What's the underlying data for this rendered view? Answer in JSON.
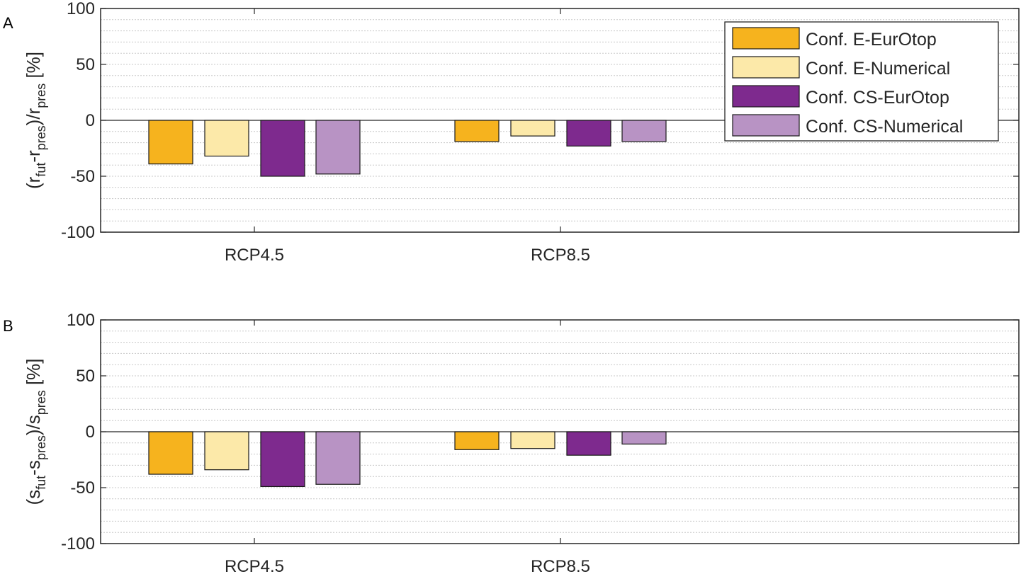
{
  "chart_data": [
    {
      "type": "bar",
      "panel_label": "A",
      "categories": [
        "RCP4.5",
        "RCP8.5"
      ],
      "ylim": [
        -100,
        100
      ],
      "yticks": [
        "100",
        "50",
        "0",
        "-50",
        "-100"
      ],
      "ylabel": {
        "p1": "(r",
        "s1": "fut",
        "p2": "-r",
        "s2": "pres",
        "p3": ")/r",
        "s3": "pres",
        "p4": " [%]"
      },
      "series": [
        {
          "name": "Conf. E-EurOtop",
          "color": "#F6B31E",
          "values": [
            -39,
            -19
          ]
        },
        {
          "name": "Conf. E-Numerical",
          "color": "#FCE9A9",
          "values": [
            -32,
            -14
          ]
        },
        {
          "name": "Conf. CS-EurOtop",
          "color": "#7E2A8E",
          "values": [
            -50,
            -23
          ]
        },
        {
          "name": "Conf. CS-Numerical",
          "color": "#B893C4",
          "values": [
            -48,
            -19
          ]
        }
      ],
      "legend": "top-right",
      "grid": "minor-y"
    },
    {
      "type": "bar",
      "panel_label": "B",
      "categories": [
        "RCP4.5",
        "RCP8.5"
      ],
      "ylim": [
        -100,
        100
      ],
      "yticks": [
        "100",
        "50",
        "0",
        "-50",
        "-100"
      ],
      "ylabel": {
        "p1": "(s",
        "s1": "fut",
        "p2": "-s",
        "s2": "pres",
        "p3": ")/s",
        "s3": "pres",
        "p4": " [%]"
      },
      "series": [
        {
          "name": "Conf. E-EurOtop",
          "color": "#F6B31E",
          "values": [
            -38,
            -16
          ]
        },
        {
          "name": "Conf. E-Numerical",
          "color": "#FCE9A9",
          "values": [
            -34,
            -15
          ]
        },
        {
          "name": "Conf. CS-EurOtop",
          "color": "#7E2A8E",
          "values": [
            -49,
            -21
          ]
        },
        {
          "name": "Conf. CS-Numerical",
          "color": "#B893C4",
          "values": [
            -47,
            -11
          ]
        }
      ],
      "grid": "minor-y"
    }
  ]
}
